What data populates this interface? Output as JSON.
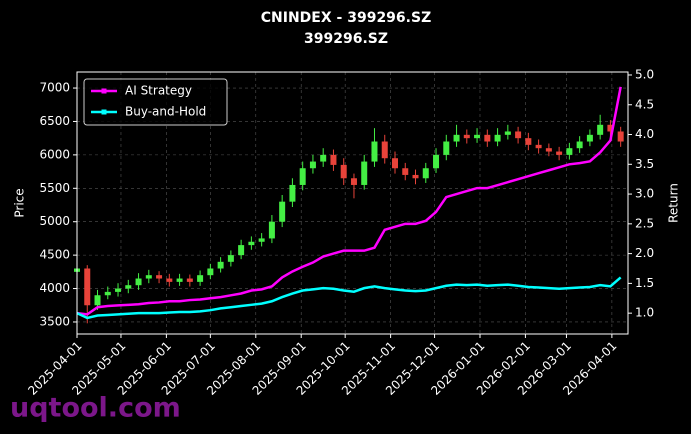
{
  "chart_data": {
    "type": "candlestick",
    "title": "CNINDEX - 399296.SZ",
    "subtitle": "399296.SZ",
    "ylabel": "Price",
    "y2label": "Return",
    "x": [
      "2025-04-01",
      "2025-04-08",
      "2025-04-15",
      "2025-04-22",
      "2025-04-29",
      "2025-05-06",
      "2025-05-13",
      "2025-05-20",
      "2025-05-27",
      "2025-06-03",
      "2025-06-10",
      "2025-06-17",
      "2025-06-24",
      "2025-07-01",
      "2025-07-08",
      "2025-07-15",
      "2025-07-22",
      "2025-07-29",
      "2025-08-05",
      "2025-08-12",
      "2025-08-19",
      "2025-08-26",
      "2025-09-02",
      "2025-09-09",
      "2025-09-16",
      "2025-09-23",
      "2025-09-30",
      "2025-10-07",
      "2025-10-14",
      "2025-10-21",
      "2025-10-28",
      "2025-11-04",
      "2025-11-11",
      "2025-11-18",
      "2025-11-25",
      "2025-12-02",
      "2025-12-09",
      "2025-12-16",
      "2025-12-23",
      "2025-12-30",
      "2026-01-06",
      "2026-01-13",
      "2026-01-20",
      "2026-01-27",
      "2026-02-03",
      "2026-02-10",
      "2026-02-17",
      "2026-02-24",
      "2026-03-03",
      "2026-03-10",
      "2026-03-17",
      "2026-03-24",
      "2026-03-31",
      "2026-04-07"
    ],
    "open": [
      4250,
      4300,
      3750,
      3900,
      3950,
      4000,
      4050,
      4150,
      4200,
      4150,
      4100,
      4150,
      4100,
      4200,
      4300,
      4400,
      4500,
      4650,
      4700,
      4750,
      5000,
      5300,
      5550,
      5800,
      5900,
      6000,
      5850,
      5650,
      5550,
      5900,
      6200,
      5950,
      5800,
      5700,
      5650,
      5800,
      6000,
      6200,
      6300,
      6250,
      6300,
      6200,
      6300,
      6350,
      6250,
      6150,
      6100,
      6050,
      6000,
      6100,
      6200,
      6300,
      6450,
      6350
    ],
    "high": [
      4380,
      4350,
      3980,
      4030,
      4080,
      4130,
      4230,
      4280,
      4260,
      4220,
      4220,
      4210,
      4270,
      4370,
      4470,
      4570,
      4730,
      4780,
      4830,
      5100,
      5400,
      5650,
      5900,
      6000,
      6100,
      6080,
      5950,
      5720,
      6000,
      6400,
      6300,
      6050,
      5880,
      5780,
      5880,
      6100,
      6300,
      6450,
      6380,
      6400,
      6380,
      6400,
      6450,
      6420,
      6330,
      6230,
      6170,
      6120,
      6180,
      6280,
      6380,
      6600,
      6520,
      6420
    ],
    "low": [
      4180,
      3480,
      3680,
      3840,
      3880,
      3930,
      3980,
      4080,
      4080,
      4030,
      4040,
      4030,
      4040,
      4140,
      4240,
      4330,
      4440,
      4580,
      4630,
      4680,
      4920,
      5220,
      5470,
      5720,
      5820,
      5760,
      5550,
      5350,
      5480,
      5820,
      5870,
      5720,
      5620,
      5560,
      5580,
      5730,
      5920,
      6120,
      6170,
      6180,
      6120,
      6130,
      6230,
      6170,
      6070,
      6020,
      5980,
      5920,
      5930,
      6030,
      6130,
      6230,
      6270,
      6120
    ],
    "close": [
      4300,
      3750,
      3900,
      3950,
      4000,
      4050,
      4150,
      4200,
      4150,
      4100,
      4150,
      4100,
      4200,
      4300,
      4400,
      4500,
      4650,
      4700,
      4750,
      5000,
      5300,
      5550,
      5800,
      5900,
      6000,
      5850,
      5650,
      5550,
      5900,
      6200,
      5950,
      5800,
      5700,
      5650,
      5800,
      6000,
      6200,
      6300,
      6250,
      6300,
      6200,
      6300,
      6350,
      6250,
      6150,
      6100,
      6050,
      6000,
      6100,
      6200,
      6300,
      6450,
      6350,
      6200
    ],
    "up_color": "#44ee44",
    "down_color": "#e8433a",
    "series": [
      {
        "name": "AI Strategy",
        "color": "#ff00ff",
        "axis": "y2",
        "values": [
          1.0,
          0.98,
          1.1,
          1.12,
          1.13,
          1.14,
          1.15,
          1.17,
          1.18,
          1.2,
          1.2,
          1.22,
          1.23,
          1.25,
          1.27,
          1.3,
          1.33,
          1.38,
          1.4,
          1.45,
          1.6,
          1.7,
          1.78,
          1.85,
          1.95,
          2.0,
          2.05,
          2.05,
          2.05,
          2.1,
          2.4,
          2.45,
          2.5,
          2.5,
          2.55,
          2.7,
          2.95,
          3.0,
          3.05,
          3.1,
          3.1,
          3.15,
          3.2,
          3.25,
          3.3,
          3.35,
          3.4,
          3.45,
          3.5,
          3.52,
          3.55,
          3.7,
          3.9,
          4.8
        ]
      },
      {
        "name": "Buy-and-Hold",
        "color": "#00ffff",
        "axis": "y2",
        "values": [
          1.0,
          0.92,
          0.96,
          0.97,
          0.98,
          0.99,
          1.0,
          1.0,
          1.0,
          1.01,
          1.02,
          1.02,
          1.03,
          1.05,
          1.08,
          1.1,
          1.12,
          1.14,
          1.16,
          1.2,
          1.27,
          1.33,
          1.38,
          1.4,
          1.42,
          1.41,
          1.38,
          1.36,
          1.42,
          1.45,
          1.42,
          1.4,
          1.38,
          1.37,
          1.38,
          1.42,
          1.46,
          1.48,
          1.47,
          1.48,
          1.46,
          1.47,
          1.48,
          1.46,
          1.44,
          1.43,
          1.42,
          1.41,
          1.42,
          1.43,
          1.44,
          1.47,
          1.45,
          1.6
        ]
      }
    ],
    "xlim": [
      "2025-04-01",
      "2026-04-12"
    ],
    "xticks": [
      "2025-04-01",
      "2025-05-01",
      "2025-06-01",
      "2025-07-01",
      "2025-08-01",
      "2025-09-01",
      "2025-10-01",
      "2025-11-01",
      "2025-12-01",
      "2026-01-01",
      "2026-02-01",
      "2026-03-01",
      "2026-04-01"
    ],
    "ylim": [
      3320,
      7240
    ],
    "yticks": [
      3500,
      4000,
      4500,
      5000,
      5500,
      6000,
      6500,
      7000
    ],
    "y2lim": [
      0.65,
      5.05
    ],
    "y2ticks": [
      {
        "value": 1,
        "label": "1.0"
      },
      1.5,
      {
        "value": 2,
        "label": "2.0"
      },
      2.5,
      {
        "value": 3,
        "label": "3.0"
      },
      3.5,
      {
        "value": 4,
        "label": "4.0"
      },
      4.5,
      {
        "value": 5,
        "label": "5.0"
      }
    ],
    "grid": true,
    "legend": "upper left"
  },
  "watermark": "uqtool.com"
}
